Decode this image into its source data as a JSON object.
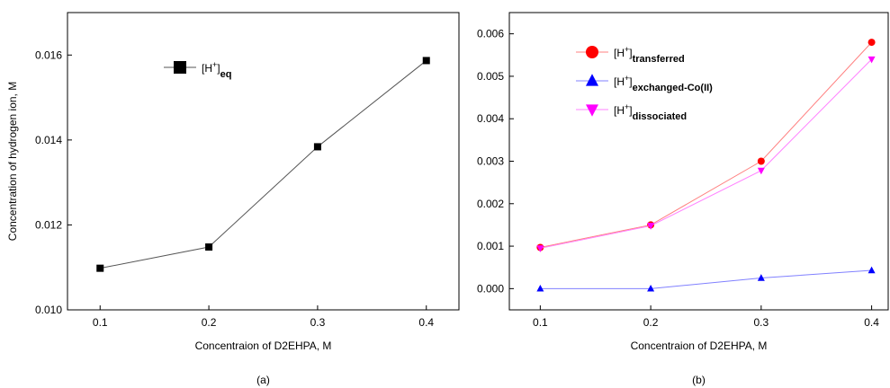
{
  "chart_data": [
    {
      "type": "line",
      "caption": "(a)",
      "x_label": "Concentraion of D2EHPA, M",
      "y_label": "Concentration of hydrogen ion, M",
      "x": [
        0.1,
        0.2,
        0.3,
        0.4
      ],
      "series": [
        {
          "name": [
            "[H",
            "+",
            "]",
            "eq"
          ],
          "color": "#000000",
          "line_color": "#555555",
          "marker": "square",
          "values": [
            0.01098,
            0.01148,
            0.01384,
            0.01587
          ]
        }
      ],
      "xlim": [
        0.07,
        0.43
      ],
      "xticks": [
        0.1,
        0.2,
        0.3,
        0.4
      ],
      "ylim": [
        0.01,
        0.017
      ],
      "yticks": [
        {
          "value": 0.01,
          "label": "0.010"
        },
        0.012,
        0.014,
        0.016
      ]
    },
    {
      "type": "line",
      "caption": "(b)",
      "x_label": "Concentraion of D2EHPA, M",
      "x": [
        0.1,
        0.2,
        0.3,
        0.4
      ],
      "series": [
        {
          "name": [
            "[H",
            "+",
            "]",
            "transferred"
          ],
          "color": "#ff0000",
          "line_color": "#ff8080",
          "marker": "circle",
          "values": [
            0.00097,
            0.0015,
            0.003,
            0.0058
          ]
        },
        {
          "name": [
            "[H",
            "+",
            "]",
            "exchanged-Co(II)"
          ],
          "color": "#0000ff",
          "line_color": "#8080ff",
          "marker": "triangle-up",
          "values": [
            0,
            0,
            0.00025,
            0.00043
          ]
        },
        {
          "name": [
            "[H",
            "+",
            "]",
            "dissociated"
          ],
          "color": "#ff00ff",
          "line_color": "#ff80ff",
          "marker": "triangle-down",
          "values": [
            0.00095,
            0.00148,
            0.00278,
            0.0054
          ]
        }
      ],
      "xlim": [
        0.072,
        0.415
      ],
      "xticks": [
        0.1,
        0.2,
        0.3,
        0.4
      ],
      "ylim": [
        -0.0005,
        0.0065
      ],
      "yticks": [
        {
          "value": 0,
          "label": "0.000"
        },
        0.001,
        0.002,
        0.003,
        0.004,
        0.005,
        0.006
      ]
    }
  ]
}
